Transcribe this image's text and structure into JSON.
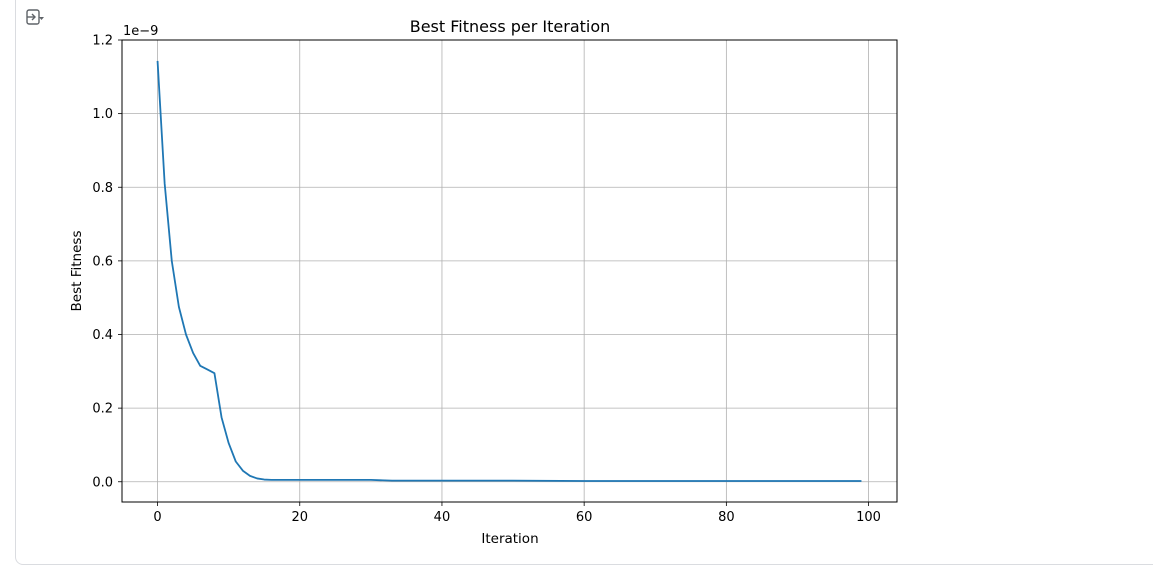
{
  "output_toggle_icon": "output-collapse-icon",
  "colors": {
    "line": "#1f77b4",
    "grid": "#b0b0b0",
    "axes": "#000000",
    "card_border": "#dadce0"
  },
  "chart_data": {
    "type": "line",
    "title": "Best Fitness per Iteration",
    "xlabel": "Iteration",
    "ylabel": "Best Fitness",
    "offset_text": "1e−9",
    "xlim": [
      -5,
      104
    ],
    "ylim": [
      -0.055,
      1.2
    ],
    "y_scale_factor": 1e-09,
    "grid": true,
    "xticks": [
      0,
      20,
      40,
      60,
      80,
      100
    ],
    "xtick_labels": [
      "0",
      "20",
      "40",
      "60",
      "80",
      "100"
    ],
    "yticks": [
      0.0,
      0.2,
      0.4,
      0.6,
      0.8,
      1.0,
      1.2
    ],
    "ytick_labels": [
      "0.0",
      "0.2",
      "0.4",
      "0.6",
      "0.8",
      "1.0",
      "1.2"
    ],
    "series": [
      {
        "x": [
          0,
          1,
          2,
          3,
          4,
          5,
          6,
          7,
          8,
          9,
          10,
          11,
          12,
          13,
          14,
          15,
          16,
          17,
          18,
          20,
          25,
          30,
          33,
          40,
          50,
          60,
          70,
          80,
          90,
          99
        ],
        "y": [
          1.143,
          0.81,
          0.6,
          0.475,
          0.4,
          0.35,
          0.315,
          0.305,
          0.295,
          0.175,
          0.105,
          0.055,
          0.03,
          0.016,
          0.009,
          0.006,
          0.005,
          0.005,
          0.005,
          0.005,
          0.005,
          0.005,
          0.003,
          0.003,
          0.003,
          0.002,
          0.002,
          0.002,
          0.002,
          0.002
        ]
      }
    ]
  }
}
